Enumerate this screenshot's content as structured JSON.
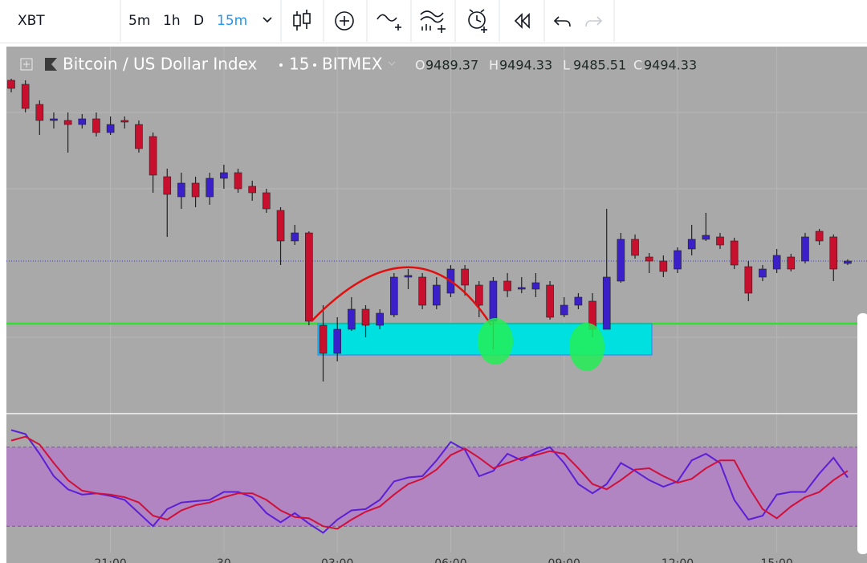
{
  "toolbar": {
    "symbol": "XBT",
    "intervals": [
      "5m",
      "1h",
      "D",
      "15m"
    ],
    "active_index": 3
  },
  "chart_data": [
    {
      "type": "candlestick",
      "title": "Bitcoin / US Dollar Index",
      "interval": "15",
      "exchange": "BITMEX",
      "legend": [
        {
          "label": "O",
          "value": 9489.37
        },
        {
          "label": "H",
          "value": 9494.33
        },
        {
          "label": "L",
          "value": 9485.51
        },
        {
          "label": "C",
          "value": 9494.33
        }
      ],
      "categories": [
        null,
        null,
        null,
        null,
        null,
        null,
        null,
        "21:00",
        null,
        null,
        null,
        null,
        null,
        null,
        null,
        "30",
        null,
        null,
        null,
        null,
        null,
        null,
        null,
        "03:00",
        null,
        null,
        null,
        null,
        null,
        null,
        null,
        "06:00",
        null,
        null,
        null,
        null,
        null,
        null,
        null,
        "09:00",
        null,
        null,
        null,
        null,
        null,
        null,
        null,
        "12:00",
        null,
        null,
        null,
        null,
        null,
        null,
        "15:00",
        null,
        null,
        null,
        null,
        null
      ],
      "ohlc": [
        [
          9606.5,
          9607.5,
          9599,
          9601.5
        ],
        [
          9604,
          9606.5,
          9586.5,
          9589
        ],
        [
          9591.5,
          9594,
          9572.5,
          9581.5
        ],
        [
          9581.5,
          9586.5,
          9576.5,
          9582.5
        ],
        [
          9581.5,
          9586.5,
          9561.5,
          9579
        ],
        [
          9579,
          9585.5,
          9576.5,
          9582.5
        ],
        [
          9582.5,
          9586.5,
          9571.5,
          9574
        ],
        [
          9574,
          9584,
          9572.5,
          9579
        ],
        [
          9581.5,
          9584,
          9576.5,
          9580.5
        ],
        [
          9579,
          9581.5,
          9561.5,
          9564
        ],
        [
          9571.5,
          9574,
          9536.5,
          9547.5
        ],
        [
          9546.5,
          9551.5,
          9509,
          9535.5
        ],
        [
          9534,
          9549,
          9526.5,
          9542.5
        ],
        [
          9542.5,
          9546.5,
          9527.5,
          9534
        ],
        [
          9534,
          9549,
          9529,
          9545.5
        ],
        [
          9545.5,
          9554,
          9539,
          9549
        ],
        [
          9549,
          9551.5,
          9536.5,
          9539
        ],
        [
          9540.5,
          9544,
          9531.5,
          9536.5
        ],
        [
          9536.5,
          9539,
          9524,
          9526.5
        ],
        [
          9525.5,
          9527.5,
          9491.5,
          9506.5
        ],
        [
          9506.5,
          9516.5,
          9504,
          9511.5
        ],
        [
          9511.5,
          9512.5,
          9454,
          9456.5
        ],
        [
          9454,
          9466.5,
          9419,
          9436.5
        ],
        [
          9436.5,
          9459,
          9431.5,
          9451.5
        ],
        [
          9451.5,
          9471.5,
          9450.5,
          9464
        ],
        [
          9464,
          9466.5,
          9446.5,
          9454
        ],
        [
          9454,
          9464,
          9451.5,
          9461.5
        ],
        [
          9460.5,
          9486.5,
          9459,
          9484
        ],
        [
          9484,
          9489,
          9476.5,
          9485
        ],
        [
          9484,
          9486.5,
          9464,
          9466.5
        ],
        [
          9466.5,
          9484,
          9464,
          9479
        ],
        [
          9474,
          9491.5,
          9471.5,
          9489
        ],
        [
          9489,
          9491.5,
          9472.5,
          9479
        ],
        [
          9479,
          9481.5,
          9459,
          9466.5
        ],
        [
          9456.5,
          9484,
          9439,
          9481.5
        ],
        [
          9481.5,
          9486.5,
          9471.5,
          9475.5
        ],
        [
          9476.5,
          9484,
          9474,
          9477.5
        ],
        [
          9476.5,
          9486.5,
          9471.5,
          9480.5
        ],
        [
          9479,
          9481.5,
          9457.5,
          9459
        ],
        [
          9460.5,
          9471.5,
          9459,
          9466.5
        ],
        [
          9466.5,
          9474,
          9464,
          9471.5
        ],
        [
          9469,
          9474,
          9446.5,
          9451.5
        ],
        [
          9451.5,
          9526.5,
          9451.5,
          9484
        ],
        [
          9481.5,
          9511.5,
          9480.5,
          9507.5
        ],
        [
          9507.5,
          9510.5,
          9495.5,
          9497.5
        ],
        [
          9496.5,
          9499,
          9486.5,
          9494
        ],
        [
          9494,
          9497.5,
          9484,
          9487.5
        ],
        [
          9489,
          9502.5,
          9486.5,
          9500.5
        ],
        [
          9501.5,
          9516.5,
          9497.5,
          9507.5
        ],
        [
          9507.5,
          9524,
          9506.5,
          9510
        ],
        [
          9509,
          9511.5,
          9501.5,
          9504
        ],
        [
          9506.5,
          9508.5,
          9489,
          9491.5
        ],
        [
          9490.5,
          9494,
          9469,
          9474
        ],
        [
          9484,
          9491.5,
          9481.5,
          9489
        ],
        [
          9489,
          9501.5,
          9486.5,
          9497.5
        ],
        [
          9496.5,
          9498.5,
          9487.5,
          9489
        ],
        [
          9494,
          9511.5,
          9492.5,
          9509
        ],
        [
          9512.5,
          9514,
          9504,
          9506.5
        ],
        [
          9509,
          9510.5,
          9481.5,
          9489
        ],
        [
          9492.5,
          9495,
          9491.5,
          9494
        ]
      ],
      "up_color": "#3b1fc9",
      "down_color": "#c8102e",
      "ylim": [
        9404,
        9609
      ]
    },
    {
      "type": "line",
      "ylim": [
        0,
        100
      ],
      "band": [
        20,
        80
      ],
      "band_color": "#b184c2",
      "series": [
        {
          "color": "#5a1fd6",
          "values": [
            93,
            90,
            75,
            58,
            48,
            44,
            45,
            43,
            40,
            30,
            20,
            33,
            38,
            39,
            40,
            46,
            46,
            42,
            30,
            23,
            30,
            22,
            15,
            25,
            32,
            33,
            40,
            54,
            57,
            58,
            70,
            84,
            78,
            58,
            62,
            75,
            70,
            76,
            80,
            68,
            52,
            45,
            52,
            68,
            62,
            55,
            50,
            54,
            70,
            75,
            68,
            40,
            25,
            28,
            44,
            46,
            46,
            60,
            72,
            57
          ]
        },
        {
          "color": "#d0103a",
          "values": [
            85,
            88,
            82,
            68,
            55,
            47,
            45,
            44,
            42,
            38,
            28,
            25,
            32,
            36,
            38,
            42,
            45,
            45,
            40,
            32,
            27,
            26,
            20,
            18,
            25,
            31,
            35,
            44,
            52,
            56,
            63,
            74,
            79,
            72,
            64,
            68,
            72,
            74,
            77,
            75,
            64,
            52,
            48,
            55,
            63,
            64,
            58,
            53,
            56,
            64,
            70,
            70,
            50,
            33,
            26,
            35,
            42,
            46,
            55,
            62
          ]
        }
      ]
    }
  ]
}
